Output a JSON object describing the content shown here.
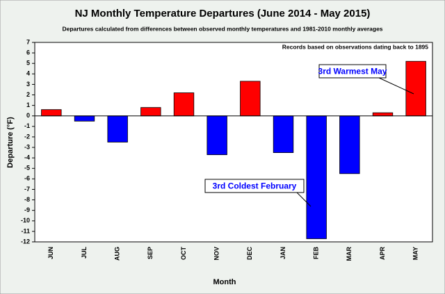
{
  "chart_data": {
    "type": "bar",
    "title": "NJ Monthly  Temperature Departures (June 2014 - May 2015)",
    "subtitle": "Departures calculated from differences between observed monthly temperatures and 1981-2010 monthly averages",
    "note": "Records based on observations dating back to 1895",
    "x_label": "Month",
    "y_label": "Departure (°F)",
    "categories": [
      "JUN",
      "JUL",
      "AUG",
      "SEP",
      "OCT",
      "NOV",
      "DEC",
      "JAN",
      "FEB",
      "MAR",
      "APR",
      "MAY"
    ],
    "values": [
      0.6,
      -0.5,
      -2.5,
      0.8,
      2.2,
      -3.7,
      3.3,
      -3.5,
      -11.7,
      -5.5,
      0.3,
      5.2
    ],
    "colors": [
      "#ff0000",
      "#0000ff",
      "#0000ff",
      "#ff0000",
      "#ff0000",
      "#0000ff",
      "#ff0000",
      "#0000ff",
      "#0000ff",
      "#0000ff",
      "#ff0000",
      "#ff0000"
    ],
    "ylim": [
      -12,
      7
    ],
    "yticks": [
      -12,
      -11,
      -10,
      -9,
      -8,
      -7,
      -6,
      -5,
      -4,
      -3,
      -2,
      -1,
      0,
      1,
      2,
      3,
      4,
      5,
      6,
      7
    ],
    "annotations": [
      "3rd Warmest May",
      "3rd Coldest February"
    ]
  }
}
